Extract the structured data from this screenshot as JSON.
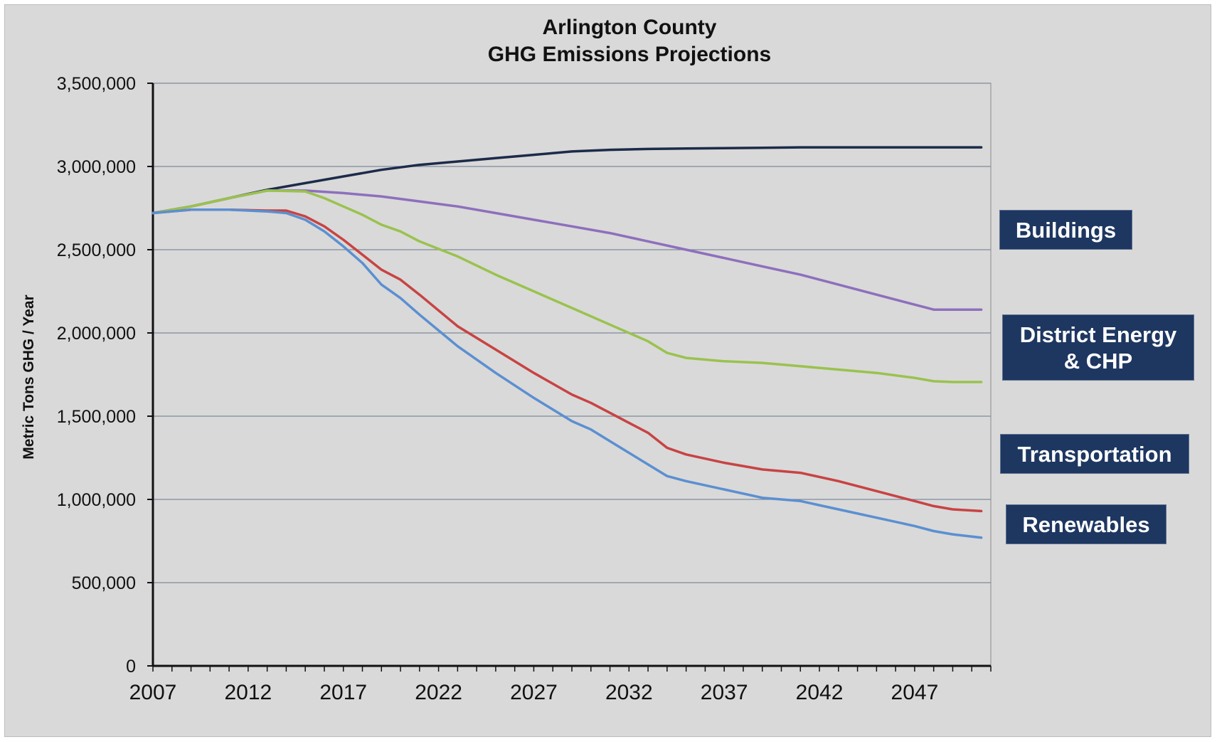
{
  "chart_data": {
    "type": "line",
    "title": "Arlington County",
    "subtitle": "GHG Emissions Projections",
    "xlabel": "",
    "ylabel": "Metric Tons GHG / Year",
    "x_ticks": [
      "2007",
      "2012",
      "2017",
      "2022",
      "2027",
      "2032",
      "2037",
      "2042",
      "2047"
    ],
    "y_ticks": [
      "0",
      "500,000",
      "1,000,000",
      "1,500,000",
      "2,000,000",
      "2,500,000",
      "3,000,000",
      "3,500,000"
    ],
    "xlim": [
      2007,
      2051
    ],
    "ylim": [
      0,
      3500000
    ],
    "grid": true,
    "series": [
      {
        "color": "#1c2b4a",
        "x": [
          2007,
          2009,
          2011,
          2013,
          2015,
          2017,
          2019,
          2021,
          2023,
          2025,
          2027,
          2029,
          2031,
          2033,
          2035,
          2037,
          2039,
          2041,
          2043,
          2045,
          2047,
          2049,
          2050.5
        ],
        "y": [
          2720000,
          2760000,
          2810000,
          2860000,
          2900000,
          2940000,
          2980000,
          3010000,
          3030000,
          3050000,
          3070000,
          3090000,
          3100000,
          3105000,
          3108000,
          3110000,
          3112000,
          3115000,
          3115000,
          3115000,
          3115000,
          3115000,
          3115000
        ]
      },
      {
        "color": "#8e6fbd",
        "x": [
          2007,
          2009,
          2011,
          2013,
          2015,
          2017,
          2019,
          2021,
          2023,
          2025,
          2027,
          2029,
          2031,
          2033,
          2035,
          2037,
          2039,
          2041,
          2043,
          2045,
          2047,
          2048,
          2049,
          2050.5
        ],
        "y": [
          2720000,
          2760000,
          2810000,
          2855000,
          2855000,
          2840000,
          2820000,
          2790000,
          2760000,
          2720000,
          2680000,
          2640000,
          2600000,
          2550000,
          2500000,
          2450000,
          2400000,
          2350000,
          2290000,
          2230000,
          2170000,
          2140000,
          2140000,
          2140000
        ]
      },
      {
        "color": "#9ac24e",
        "x": [
          2007,
          2009,
          2011,
          2013,
          2015,
          2016,
          2017,
          2018,
          2019,
          2020,
          2021,
          2023,
          2025,
          2027,
          2029,
          2031,
          2033,
          2034,
          2035,
          2037,
          2039,
          2041,
          2043,
          2045,
          2047,
          2048,
          2049,
          2050.5
        ],
        "y": [
          2720000,
          2760000,
          2810000,
          2855000,
          2850000,
          2810000,
          2760000,
          2710000,
          2650000,
          2610000,
          2550000,
          2460000,
          2350000,
          2250000,
          2150000,
          2050000,
          1950000,
          1880000,
          1850000,
          1830000,
          1820000,
          1800000,
          1780000,
          1760000,
          1730000,
          1710000,
          1705000,
          1705000
        ]
      },
      {
        "color": "#c84343",
        "x": [
          2007,
          2009,
          2011,
          2013,
          2014,
          2015,
          2016,
          2017,
          2018,
          2019,
          2020,
          2021,
          2023,
          2025,
          2027,
          2029,
          2030,
          2031,
          2033,
          2034,
          2035,
          2037,
          2039,
          2041,
          2043,
          2045,
          2047,
          2048,
          2049,
          2050.5
        ],
        "y": [
          2720000,
          2740000,
          2740000,
          2735000,
          2735000,
          2700000,
          2640000,
          2560000,
          2470000,
          2380000,
          2320000,
          2230000,
          2040000,
          1900000,
          1760000,
          1630000,
          1580000,
          1520000,
          1400000,
          1310000,
          1270000,
          1220000,
          1180000,
          1160000,
          1110000,
          1050000,
          990000,
          960000,
          940000,
          930000
        ]
      },
      {
        "color": "#5b8fd1",
        "x": [
          2007,
          2009,
          2011,
          2013,
          2014,
          2015,
          2016,
          2017,
          2018,
          2019,
          2020,
          2021,
          2023,
          2025,
          2027,
          2029,
          2030,
          2031,
          2033,
          2034,
          2035,
          2037,
          2039,
          2041,
          2043,
          2045,
          2047,
          2048,
          2049,
          2050.5
        ],
        "y": [
          2720000,
          2740000,
          2740000,
          2730000,
          2720000,
          2680000,
          2610000,
          2520000,
          2420000,
          2290000,
          2210000,
          2110000,
          1920000,
          1760000,
          1610000,
          1470000,
          1420000,
          1350000,
          1210000,
          1140000,
          1110000,
          1060000,
          1010000,
          990000,
          940000,
          890000,
          840000,
          810000,
          790000,
          770000
        ]
      }
    ],
    "annotations": [
      {
        "text": "Buildings",
        "series_index": 1
      },
      {
        "text": "District Energy\n& CHP",
        "series_index": 2
      },
      {
        "text": "Transportation",
        "series_index": 3
      },
      {
        "text": "Renewables",
        "series_index": 4
      }
    ],
    "annotation_box_color": "#1e3761"
  }
}
